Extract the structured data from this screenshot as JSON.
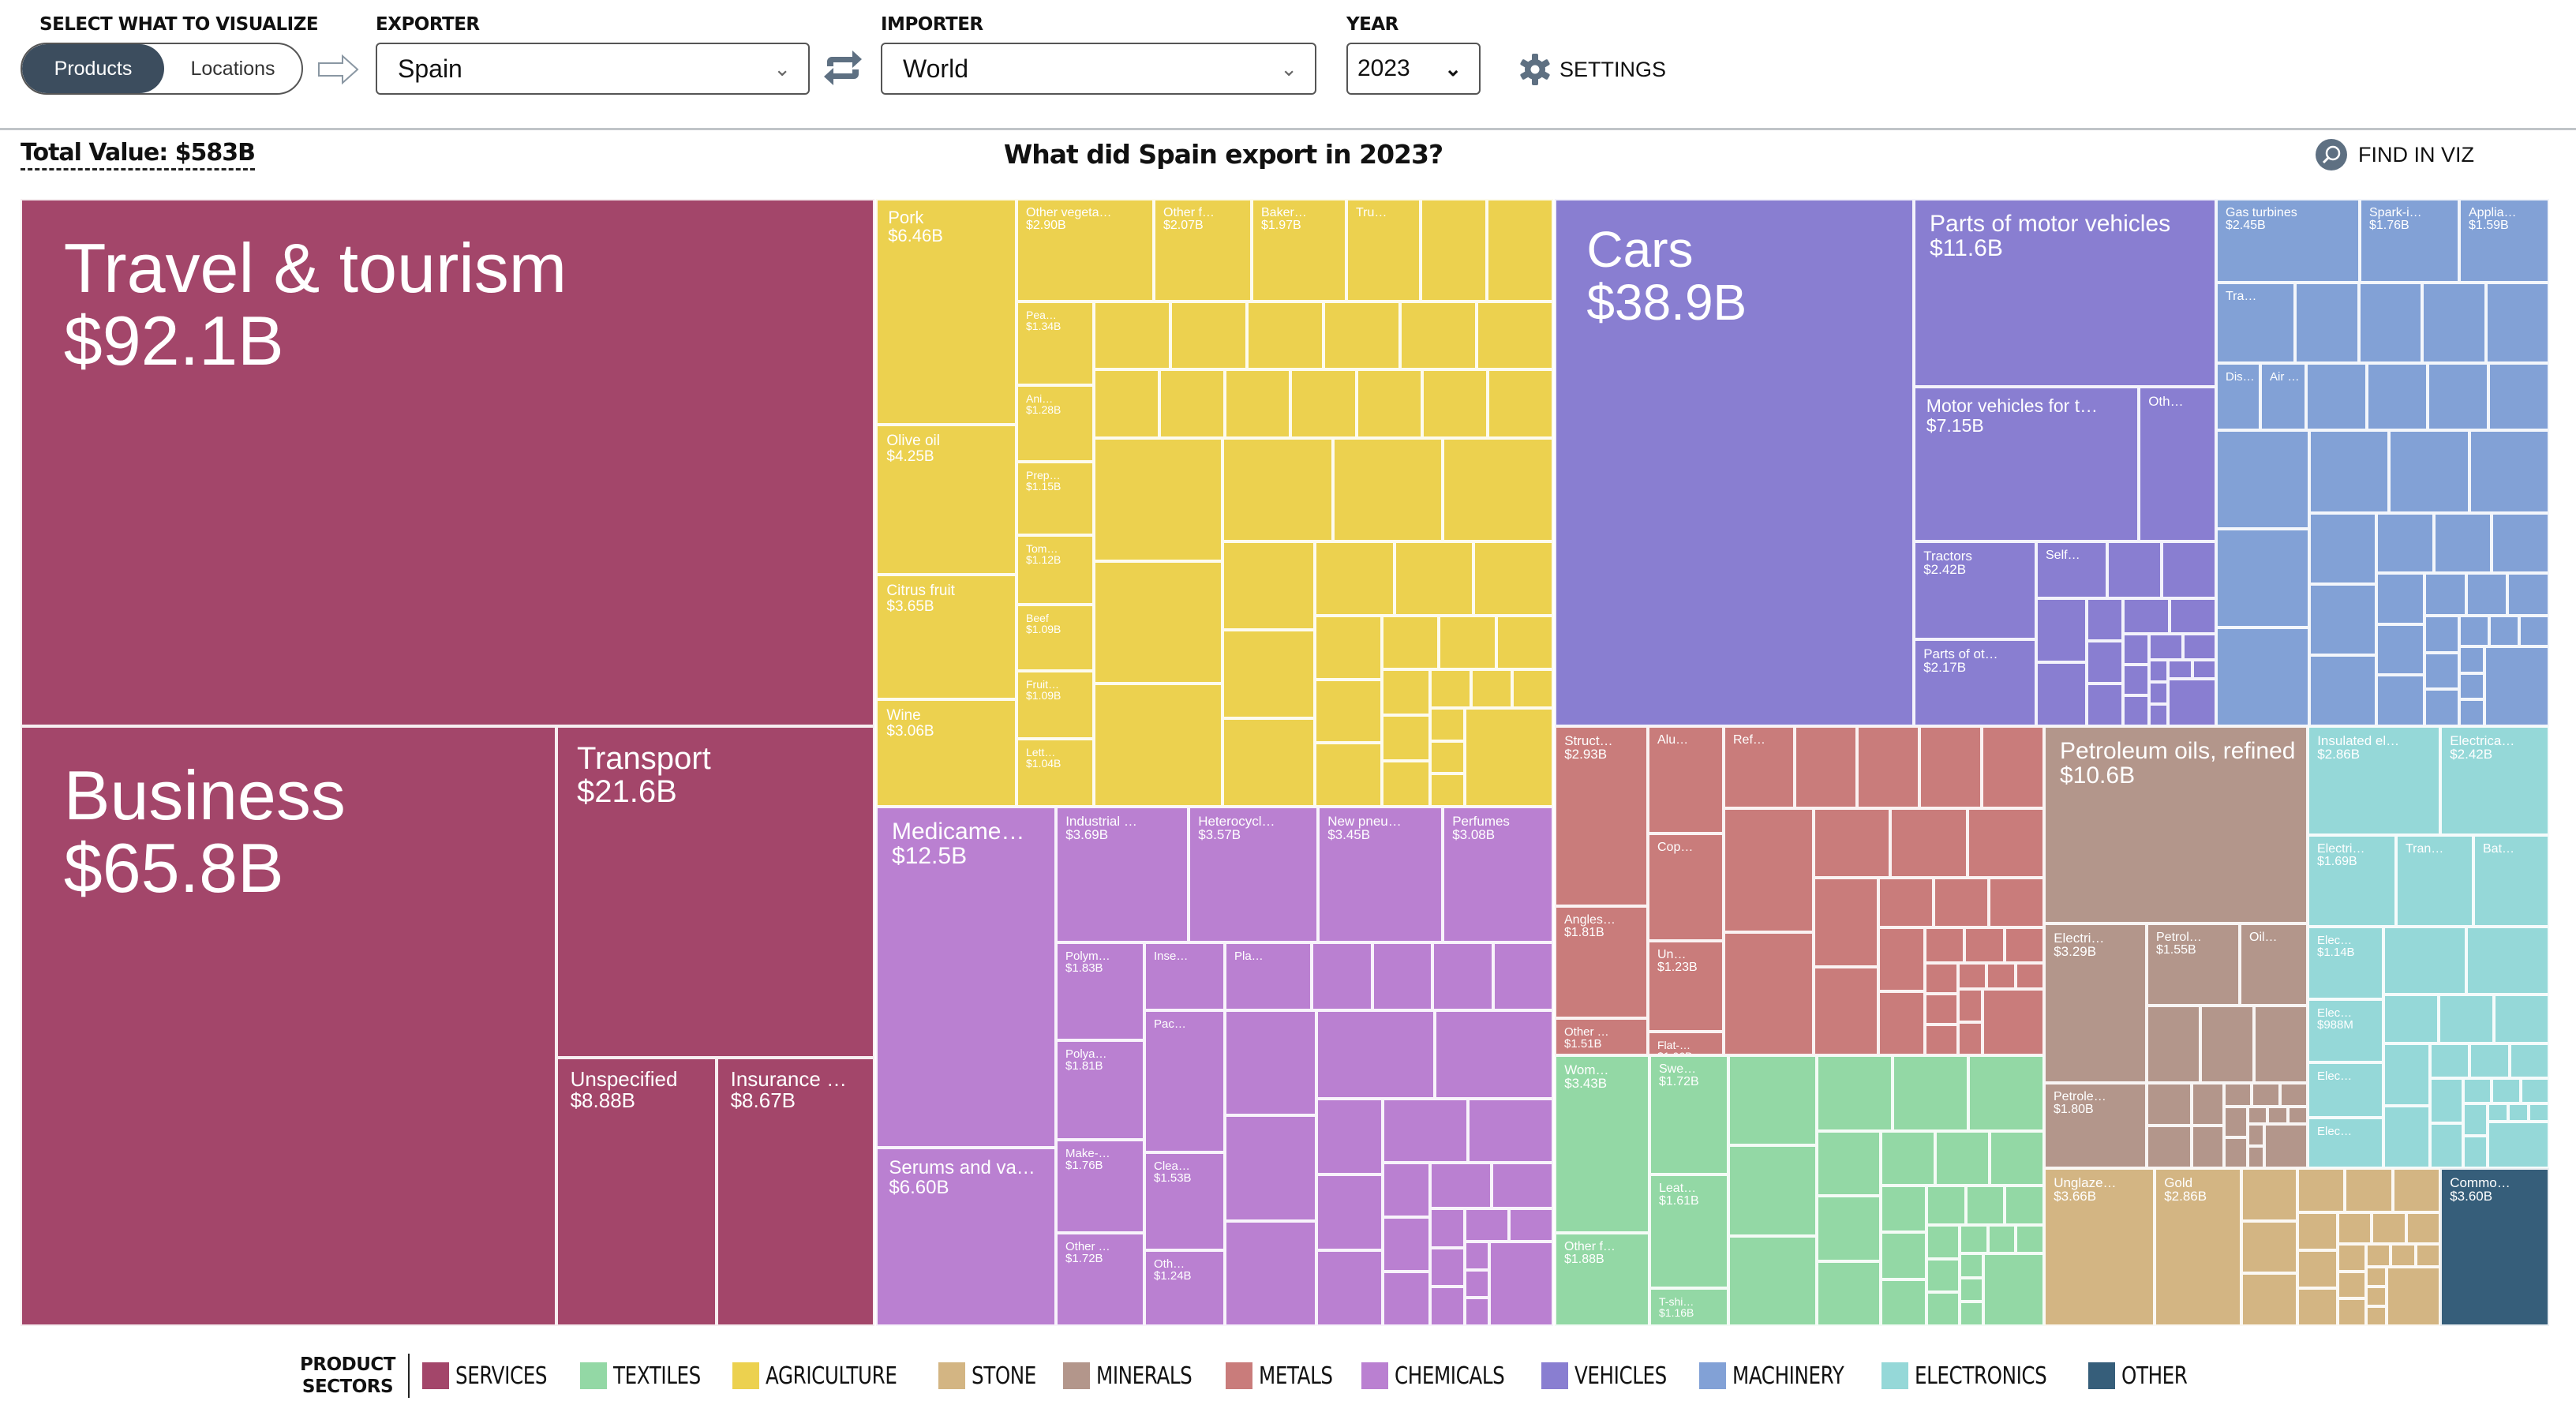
{
  "controls": {
    "visualize_label": "SELECT WHAT TO VISUALIZE",
    "toggle_options": [
      "Products",
      "Locations"
    ],
    "toggle_selected": "Products",
    "exporter_label": "EXPORTER",
    "exporter_value": "Spain",
    "importer_label": "IMPORTER",
    "importer_value": "World",
    "year_label": "YEAR",
    "year_value": "2023",
    "settings_label": "SETTINGS"
  },
  "header": {
    "total_value": "Total Value: $583B",
    "title": "What did Spain export in 2023?",
    "find_label": "FIND IN VIZ"
  },
  "legend": {
    "heading_line1": "PRODUCT",
    "heading_line2": "SECTORS",
    "sectors": [
      {
        "name": "SERVICES",
        "color": "#a3466a"
      },
      {
        "name": "TEXTILES",
        "color": "#93d8a5"
      },
      {
        "name": "AGRICULTURE",
        "color": "#ecd14f"
      },
      {
        "name": "STONE",
        "color": "#d3b583"
      },
      {
        "name": "MINERALS",
        "color": "#b3968b"
      },
      {
        "name": "METALS",
        "color": "#c97c7b"
      },
      {
        "name": "CHEMICALS",
        "color": "#ba80d1"
      },
      {
        "name": "VEHICLES",
        "color": "#897ed1"
      },
      {
        "name": "MACHINERY",
        "color": "#82a1d6"
      },
      {
        "name": "ELECTRONICS",
        "color": "#95d8d8"
      },
      {
        "name": "OTHER",
        "color": "#365e7a"
      }
    ]
  },
  "chart_data": {
    "type": "treemap",
    "title": "What did Spain export in 2023?",
    "total": "$583B",
    "unit": "USD billions",
    "sectors": [
      {
        "sector": "SERVICES",
        "products": [
          {
            "name": "Travel & tourism",
            "value": 92.1
          },
          {
            "name": "Business",
            "value": 65.8
          },
          {
            "name": "Transport",
            "value": 21.6
          },
          {
            "name": "Unspecified",
            "value": 8.88
          },
          {
            "name": "Insurance …",
            "value": 8.67
          }
        ]
      },
      {
        "sector": "AGRICULTURE",
        "products": [
          {
            "name": "Pork",
            "value": 6.46
          },
          {
            "name": "Olive oil",
            "value": 4.25
          },
          {
            "name": "Citrus fruit",
            "value": 3.65
          },
          {
            "name": "Wine",
            "value": 3.06
          },
          {
            "name": "Other vegeta…",
            "value": 2.9
          },
          {
            "name": "Other f…",
            "value": 2.07
          },
          {
            "name": "Baker…",
            "value": 1.97
          },
          {
            "name": "Tru…",
            "value": null
          },
          {
            "name": "Pea…",
            "value": 1.34
          },
          {
            "name": "Ani…",
            "value": 1.28
          },
          {
            "name": "Prep…",
            "value": 1.15
          },
          {
            "name": "Tom…",
            "value": 1.12
          },
          {
            "name": "Beef",
            "value": 1.09
          },
          {
            "name": "Fruit…",
            "value": 1.09
          },
          {
            "name": "Lett…",
            "value": 1.04
          }
        ]
      },
      {
        "sector": "CHEMICALS",
        "products": [
          {
            "name": "Medicame…",
            "value": 12.5
          },
          {
            "name": "Serums and va…",
            "value": 6.6
          },
          {
            "name": "Industrial …",
            "value": 3.69
          },
          {
            "name": "Heterocycl…",
            "value": 3.57
          },
          {
            "name": "New pneu…",
            "value": 3.45
          },
          {
            "name": "Perfumes",
            "value": 3.08
          },
          {
            "name": "Polym…",
            "value": 1.83
          },
          {
            "name": "Polya…",
            "value": 1.81
          },
          {
            "name": "Make-…",
            "value": 1.76
          },
          {
            "name": "Other …",
            "value": 1.72
          },
          {
            "name": "Clea…",
            "value": 1.53
          },
          {
            "name": "Oth…",
            "value": 1.24
          },
          {
            "name": "Inse…",
            "value": null
          },
          {
            "name": "Pla…",
            "value": null
          },
          {
            "name": "Pac…",
            "value": null
          }
        ]
      },
      {
        "sector": "VEHICLES",
        "products": [
          {
            "name": "Cars",
            "value": 38.9
          },
          {
            "name": "Parts of motor vehicles",
            "value": 11.6
          },
          {
            "name": "Motor vehicles for t…",
            "value": 7.15
          },
          {
            "name": "Tractors",
            "value": 2.42
          },
          {
            "name": "Parts of ot…",
            "value": 2.17
          },
          {
            "name": "Oth…",
            "value": null
          },
          {
            "name": "Self…",
            "value": null
          }
        ]
      },
      {
        "sector": "MACHINERY",
        "products": [
          {
            "name": "Gas turbines",
            "value": 2.45
          },
          {
            "name": "Spark-i…",
            "value": 1.76
          },
          {
            "name": "Applia…",
            "value": 1.59
          },
          {
            "name": "Tra…",
            "value": null
          },
          {
            "name": "Dis…",
            "value": null
          },
          {
            "name": "Air …",
            "value": null
          }
        ]
      },
      {
        "sector": "METALS",
        "products": [
          {
            "name": "Struct…",
            "value": 2.93
          },
          {
            "name": "Angles…",
            "value": 1.81
          },
          {
            "name": "Other …",
            "value": 1.51
          },
          {
            "name": "Un…",
            "value": 1.23
          },
          {
            "name": "Flat-…",
            "value": 1.06
          },
          {
            "name": "Alu…",
            "value": null
          },
          {
            "name": "Cop…",
            "value": null
          },
          {
            "name": "Ref…",
            "value": null
          }
        ]
      },
      {
        "sector": "TEXTILES",
        "products": [
          {
            "name": "Wom…",
            "value": 3.43
          },
          {
            "name": "Other f…",
            "value": 1.88
          },
          {
            "name": "Swe…",
            "value": 1.72
          },
          {
            "name": "Leat…",
            "value": 1.61
          },
          {
            "name": "T-shi…",
            "value": 1.16
          }
        ]
      },
      {
        "sector": "MINERALS",
        "products": [
          {
            "name": "Petroleum oils, refined",
            "value": 10.6
          },
          {
            "name": "Electri…",
            "value": 3.29
          },
          {
            "name": "Petrole…",
            "value": 1.8
          },
          {
            "name": "Petrol…",
            "value": 1.55
          },
          {
            "name": "Oil…",
            "value": null
          }
        ]
      },
      {
        "sector": "ELECTRONICS",
        "products": [
          {
            "name": "Insulated el…",
            "value": 2.86
          },
          {
            "name": "Electrica…",
            "value": 2.42
          },
          {
            "name": "Electri…",
            "value": 1.69
          },
          {
            "name": "Elec…",
            "value": 1.14
          },
          {
            "name": "Elec…",
            "value": 0.988
          },
          {
            "name": "Tran…",
            "value": null
          },
          {
            "name": "Bat…",
            "value": null
          },
          {
            "name": "Elec…",
            "value": null
          },
          {
            "name": "Elec…",
            "value": null
          }
        ]
      },
      {
        "sector": "STONE",
        "products": [
          {
            "name": "Unglaze…",
            "value": 3.66
          },
          {
            "name": "Gold",
            "value": 2.86
          }
        ]
      },
      {
        "sector": "OTHER",
        "products": [
          {
            "name": "Commo…",
            "value": 3.6
          }
        ]
      }
    ],
    "value_labels": {
      "Travel & tourism": "$92.1B",
      "Business": "$65.8B",
      "Transport": "$21.6B",
      "Unspecified": "$8.88B",
      "Insurance …": "$8.67B",
      "Pork": "$6.46B",
      "Olive oil": "$4.25B",
      "Citrus fruit": "$3.65B",
      "Wine": "$3.06B",
      "Other vegeta…": "$2.90B",
      "Other f… (agri)": "$2.07B",
      "Baker…": "$1.97B",
      "Pea…": "$1.34B",
      "Ani…": "$1.28B",
      "Prep…": "$1.15B",
      "Tom…": "$1.12B",
      "Beef": "$1.09B",
      "Fruit…": "$1.09B",
      "Lett…": "$1.04B",
      "Medicame…": "$12.5B",
      "Serums and va…": "$6.60B",
      "Industrial …": "$3.69B",
      "Heterocycl…": "$3.57B",
      "New pneu…": "$3.45B",
      "Perfumes": "$3.08B",
      "Polym…": "$1.83B",
      "Polya…": "$1.81B",
      "Make-…": "$1.76B",
      "Other … (chem)": "$1.72B",
      "Clea…": "$1.53B",
      "Oth… (chem)": "$1.24B",
      "Cars": "$38.9B",
      "Parts of motor vehicles": "$11.6B",
      "Motor vehicles for t…": "$7.15B",
      "Tractors": "$2.42B",
      "Parts of ot…": "$2.17B",
      "Gas turbines": "$2.45B",
      "Spark-i…": "$1.76B",
      "Applia…": "$1.59B",
      "Struct…": "$2.93B",
      "Angles…": "$1.81B",
      "Other … (metal)": "$1.51B",
      "Un…": "$1.23B",
      "Flat-…": "$1.06B",
      "Wom…": "$3.43B",
      "Other f… (textile)": "$1.88B",
      "Swe…": "$1.72B",
      "Leat…": "$1.61B",
      "T-shi…": "$1.16B",
      "Petroleum oils, refined": "$10.6B",
      "Electri… (mineral)": "$3.29B",
      "Petrole…": "$1.80B",
      "Petrol…": "$1.55B",
      "Insulated el…": "$2.86B",
      "Electrica…": "$2.42B",
      "Electri… (electronics)": "$1.69B",
      "Elec… 1": "$1.14B",
      "Elec… 2": "$988M",
      "Unglaze…": "$3.66B",
      "Gold": "$2.86B",
      "Commo…": "$3.60B"
    }
  }
}
